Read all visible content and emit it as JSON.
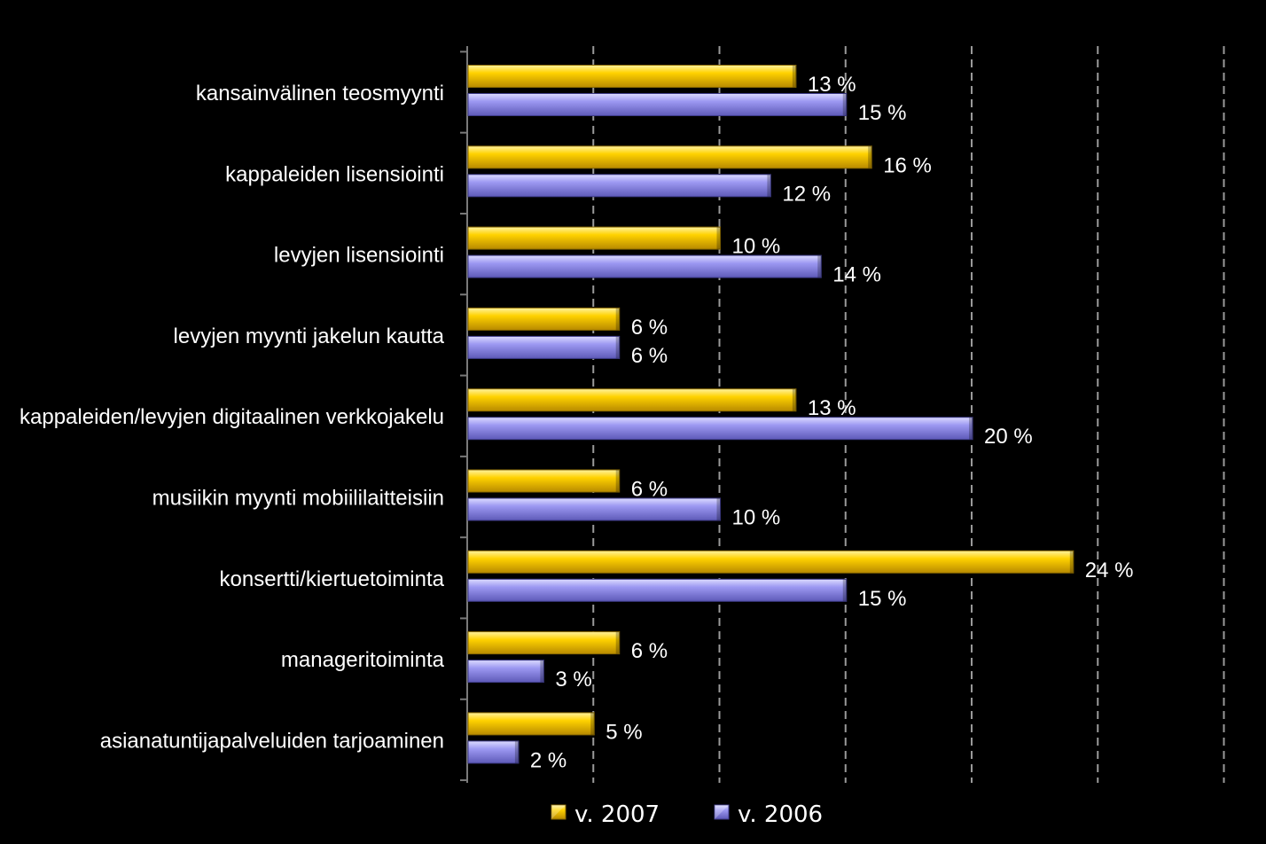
{
  "chart_data": {
    "type": "bar",
    "orientation": "horizontal",
    "categories": [
      "kansainvälinen teosmyynti",
      "kappaleiden lisensiointi",
      "levyjen lisensiointi",
      "levyjen myynti jakelun kautta",
      "kappaleiden/levyjen digitaalinen verkkojakelu",
      "musiikin myynti mobiililaitteisiin",
      "konsertti/kiertuetoiminta",
      "manageritoiminta",
      "asianatuntijapalveluiden tarjoaminen"
    ],
    "series": [
      {
        "name": "v. 2007",
        "color": "#f2c200",
        "values": [
          13,
          16,
          10,
          6,
          13,
          6,
          24,
          6,
          5
        ],
        "labels": [
          "13 %",
          "16 %",
          "10 %",
          "6 %",
          "13 %",
          "6 %",
          "24 %",
          "6 %",
          "5 %"
        ]
      },
      {
        "name": "v. 2006",
        "color": "#9a96f0",
        "values": [
          15,
          12,
          14,
          6,
          20,
          10,
          15,
          3,
          2
        ],
        "labels": [
          "15 %",
          "12 %",
          "14 %",
          "6 %",
          "20 %",
          "10 %",
          "15 %",
          "3 %",
          "2 %"
        ]
      }
    ],
    "xlim": [
      0,
      30
    ],
    "grid": true,
    "legend_position": "bottom",
    "title": "",
    "xlabel": "",
    "ylabel": ""
  }
}
